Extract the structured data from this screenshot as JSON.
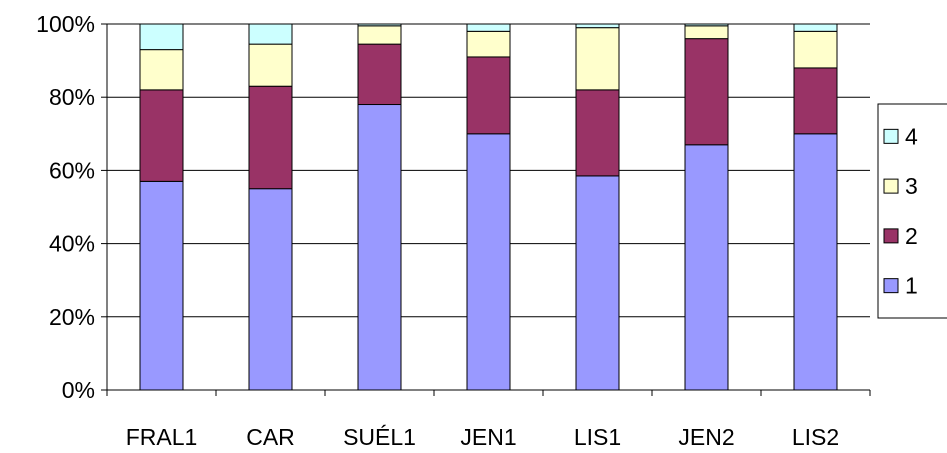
{
  "chart_data": {
    "type": "bar",
    "stacked": true,
    "percent": true,
    "categories": [
      "FRAL1",
      "CAR",
      "SUÉL1",
      "JEN1",
      "LIS1",
      "JEN2",
      "LIS2"
    ],
    "series": [
      {
        "name": "1",
        "color": "#9999ff",
        "values": [
          57,
          55,
          78,
          70,
          58.5,
          67,
          70
        ]
      },
      {
        "name": "2",
        "color": "#993366",
        "values": [
          25,
          28,
          16.5,
          21,
          23.5,
          29,
          18
        ]
      },
      {
        "name": "3",
        "color": "#ffffcc",
        "values": [
          11,
          11.5,
          5,
          7,
          17,
          3.5,
          10
        ]
      },
      {
        "name": "4",
        "color": "#ccffff",
        "values": [
          7,
          5.5,
          0.5,
          2,
          1,
          0.5,
          2
        ]
      }
    ],
    "ylim": [
      0,
      100
    ],
    "yticks": [
      "0%",
      "20%",
      "40%",
      "60%",
      "80%",
      "100%"
    ],
    "grid": true,
    "legend_position": "right"
  }
}
